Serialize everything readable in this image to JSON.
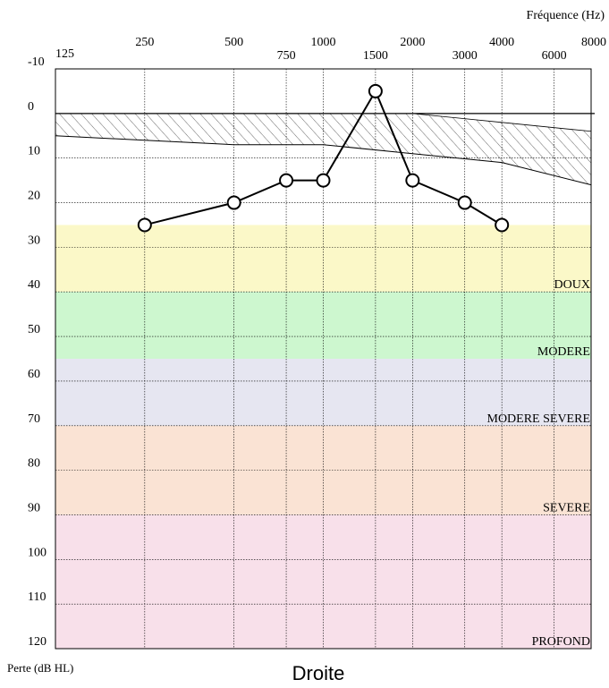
{
  "chart_data": {
    "type": "line",
    "title": "Droite",
    "xlabel": "Fréquence (Hz)",
    "ylabel": "Perte (dB HL)",
    "x_scale": "octave",
    "x_ticks_top_row": [
      "125",
      "250",
      "500",
      "1000",
      "2000",
      "4000",
      "8000"
    ],
    "x_ticks_bottom_row": [
      "750",
      "1500",
      "3000",
      "6000"
    ],
    "ylim": [
      -10,
      120
    ],
    "y_inverted": true,
    "y_ticks": [
      -10,
      0,
      10,
      20,
      30,
      40,
      50,
      60,
      70,
      80,
      90,
      100,
      110,
      120
    ],
    "grid": true,
    "zones": [
      {
        "label": "DOUX",
        "from": 25,
        "to": 40,
        "color": "#fbf8c8"
      },
      {
        "label": "MODERE",
        "from": 40,
        "to": 55,
        "color": "#cdf7cf"
      },
      {
        "label": "MODERE SEVERE",
        "from": 55,
        "to": 70,
        "color": "#e6e6f1"
      },
      {
        "label": "SEVERE",
        "from": 70,
        "to": 90,
        "color": "#fae3d4"
      },
      {
        "label": "PROFOND",
        "from": 90,
        "to": 120,
        "color": "#f8e0ea"
      }
    ],
    "normal_band": {
      "x": [
        125,
        250,
        500,
        1000,
        2000,
        4000,
        8000
      ],
      "lower": [
        0,
        0,
        0,
        0,
        0,
        2,
        4
      ],
      "upper": [
        5,
        6,
        7,
        7,
        9,
        11,
        16
      ]
    },
    "series": [
      {
        "x": [
          250,
          500,
          750,
          1000,
          1500,
          2000,
          3000,
          4000
        ],
        "y": [
          25,
          20,
          15,
          15,
          -5,
          15,
          20,
          25
        ]
      }
    ]
  }
}
